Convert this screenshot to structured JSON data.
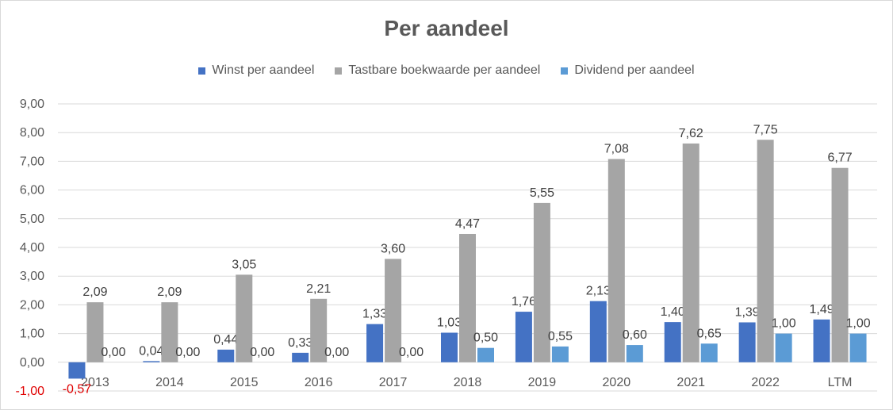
{
  "chart_data": {
    "type": "bar",
    "title": "Per aandeel",
    "categories": [
      "2013",
      "2014",
      "2015",
      "2016",
      "2017",
      "2018",
      "2019",
      "2020",
      "2021",
      "2022",
      "LTM"
    ],
    "series": [
      {
        "name": "Winst per aandeel",
        "color": "#4472c4",
        "values": [
          -0.57,
          0.04,
          0.44,
          0.33,
          1.33,
          1.03,
          1.76,
          2.13,
          1.4,
          1.39,
          1.49
        ],
        "labels": [
          "-0,57",
          "0,04",
          "0,44",
          "0,33",
          "1,33",
          "1,03",
          "1,76",
          "2,13",
          "1,40",
          "1,39",
          "1,49"
        ]
      },
      {
        "name": "Tastbare boekwaarde per aandeel",
        "color": "#a5a5a5",
        "values": [
          2.09,
          2.09,
          3.05,
          2.21,
          3.6,
          4.47,
          5.55,
          7.08,
          7.62,
          7.75,
          6.77
        ],
        "labels": [
          "2,09",
          "2,09",
          "3,05",
          "2,21",
          "3,60",
          "4,47",
          "5,55",
          "7,08",
          "7,62",
          "7,75",
          "6,77"
        ]
      },
      {
        "name": "Dividend per aandeel",
        "color": "#5b9bd5",
        "values": [
          0.0,
          0.0,
          0.0,
          0.0,
          0.0,
          0.5,
          0.55,
          0.6,
          0.65,
          1.0,
          1.0
        ],
        "labels": [
          "0,00",
          "0,00",
          "0,00",
          "0,00",
          "0,00",
          "0,50",
          "0,55",
          "0,60",
          "0,65",
          "1,00",
          "1,00"
        ]
      }
    ],
    "yticks": [
      "-1,00",
      "0,00",
      "1,00",
      "2,00",
      "3,00",
      "4,00",
      "5,00",
      "6,00",
      "7,00",
      "8,00",
      "9,00"
    ],
    "ylim": [
      -1,
      9
    ],
    "negative_label_color": "#e00000",
    "grid": true,
    "legend_position": "top"
  }
}
